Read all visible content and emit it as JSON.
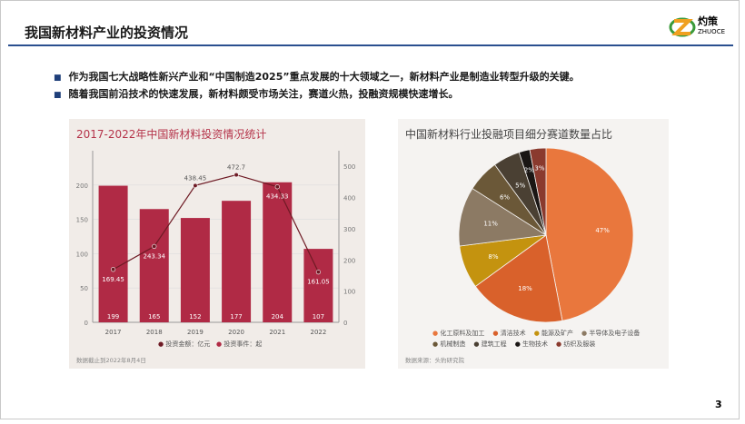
{
  "header": {
    "title": "我国新材料产业的投资情况",
    "logo_cn": "灼策",
    "logo_en": "ZHUOCE"
  },
  "bullets": [
    "作为我国七大战略性新兴产业和“中国制造2025”重点发展的十大领域之一，新材料产业是制造业转型升级的关键。",
    "随着我国前沿技术的快速发展，新材料颇受市场关注，赛道火热，投融资规模快速增长。"
  ],
  "page_number": "3",
  "chart_data": [
    {
      "type": "bar",
      "title": "2017-2022年中国新材料投资情况统计",
      "categories": [
        "2017",
        "2018",
        "2019",
        "2020",
        "2021",
        "2022"
      ],
      "series": [
        {
          "name": "投资事件：起",
          "type": "bar",
          "axis": "left",
          "values": [
            199,
            165,
            152,
            177,
            204,
            107
          ],
          "color": "#b02a45"
        },
        {
          "name": "投资金额：亿元",
          "type": "line",
          "axis": "right",
          "values": [
            169.45,
            243.34,
            438.45,
            472.7,
            434.33,
            161.05
          ],
          "color": "#6e1a24"
        }
      ],
      "ylim_left": [
        0,
        250
      ],
      "yticks_left": [
        0,
        50,
        100,
        150,
        200
      ],
      "ylim_right": [
        0,
        550
      ],
      "yticks_right": [
        0,
        100,
        200,
        300,
        400,
        500
      ],
      "grid": true,
      "legend": "bottom",
      "footnote": "数据截止到2022年8月4日"
    },
    {
      "type": "pie",
      "title": "中国新材料行业投融项目细分赛道数量占比",
      "categories": [
        "化工原料及加工",
        "清洁技术",
        "能源及矿产",
        "半导体及电子设备",
        "机械制造",
        "建筑工程",
        "生物技术",
        "纺织及服装"
      ],
      "values": [
        47,
        18,
        8,
        11,
        6,
        5,
        2,
        3
      ],
      "colors": [
        "#e9773d",
        "#d9612b",
        "#c4930f",
        "#8c7a64",
        "#6b5838",
        "#4a4033",
        "#1a1614",
        "#8a3a2e"
      ],
      "legend": "bottom",
      "footnote": "数据来源：头豹研究院"
    }
  ]
}
